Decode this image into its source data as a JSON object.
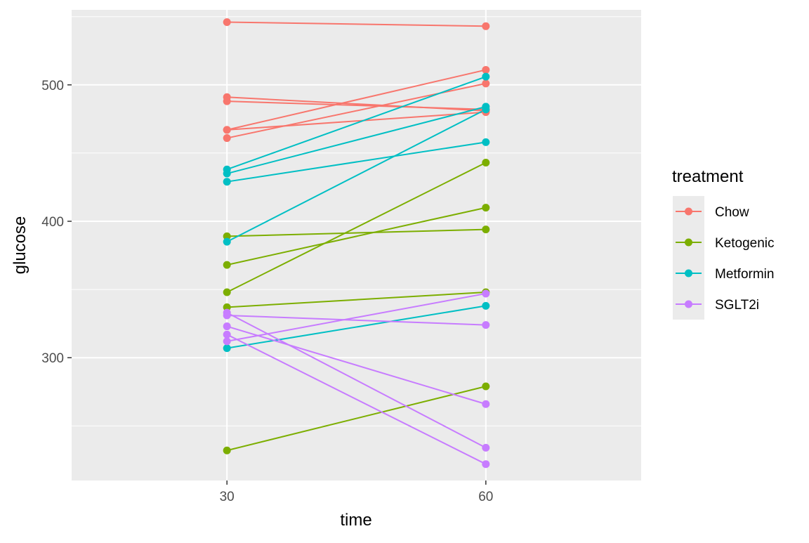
{
  "chart_data": {
    "type": "line",
    "xlabel": "time",
    "ylabel": "glucose",
    "x_ticks": [
      30,
      60
    ],
    "y_ticks": [
      300,
      400,
      500
    ],
    "xlim": [
      12,
      78
    ],
    "ylim": [
      210,
      555
    ],
    "grid": true,
    "legend": {
      "title": "treatment",
      "position": "right"
    },
    "series": [
      {
        "name": "Chow",
        "color": "#F8766D",
        "lines": [
          {
            "x": [
              30,
              60
            ],
            "y": [
              546,
              543
            ]
          },
          {
            "x": [
              30,
              60
            ],
            "y": [
              491,
              481
            ]
          },
          {
            "x": [
              30,
              60
            ],
            "y": [
              488,
              482
            ]
          },
          {
            "x": [
              30,
              60
            ],
            "y": [
              467,
              480
            ]
          },
          {
            "x": [
              30,
              60
            ],
            "y": [
              461,
              501
            ]
          },
          {
            "x": [
              30,
              60
            ],
            "y": [
              467,
              511
            ]
          }
        ]
      },
      {
        "name": "Ketogenic",
        "color": "#7CAE00",
        "lines": [
          {
            "x": [
              30,
              60
            ],
            "y": [
              389,
              394
            ]
          },
          {
            "x": [
              30,
              60
            ],
            "y": [
              368,
              410
            ]
          },
          {
            "x": [
              30,
              60
            ],
            "y": [
              348,
              443
            ]
          },
          {
            "x": [
              30,
              60
            ],
            "y": [
              337,
              348
            ]
          },
          {
            "x": [
              30,
              60
            ],
            "y": [
              232,
              279
            ]
          }
        ]
      },
      {
        "name": "Metformin",
        "color": "#00BFC4",
        "lines": [
          {
            "x": [
              30,
              60
            ],
            "y": [
              438,
              506
            ]
          },
          {
            "x": [
              30,
              60
            ],
            "y": [
              435,
              484
            ]
          },
          {
            "x": [
              30,
              60
            ],
            "y": [
              429,
              458
            ]
          },
          {
            "x": [
              30,
              60
            ],
            "y": [
              385,
              482
            ]
          },
          {
            "x": [
              30,
              60
            ],
            "y": [
              307,
              338
            ]
          }
        ]
      },
      {
        "name": "SGLT2i",
        "color": "#C77CFF",
        "lines": [
          {
            "x": [
              30,
              60
            ],
            "y": [
              331,
              324
            ]
          },
          {
            "x": [
              30,
              60
            ],
            "y": [
              312,
              347
            ]
          },
          {
            "x": [
              30,
              60
            ],
            "y": [
              333,
              234
            ]
          },
          {
            "x": [
              30,
              60
            ],
            "y": [
              323,
              266
            ]
          },
          {
            "x": [
              30,
              60
            ],
            "y": [
              317,
              222
            ]
          }
        ]
      }
    ]
  }
}
